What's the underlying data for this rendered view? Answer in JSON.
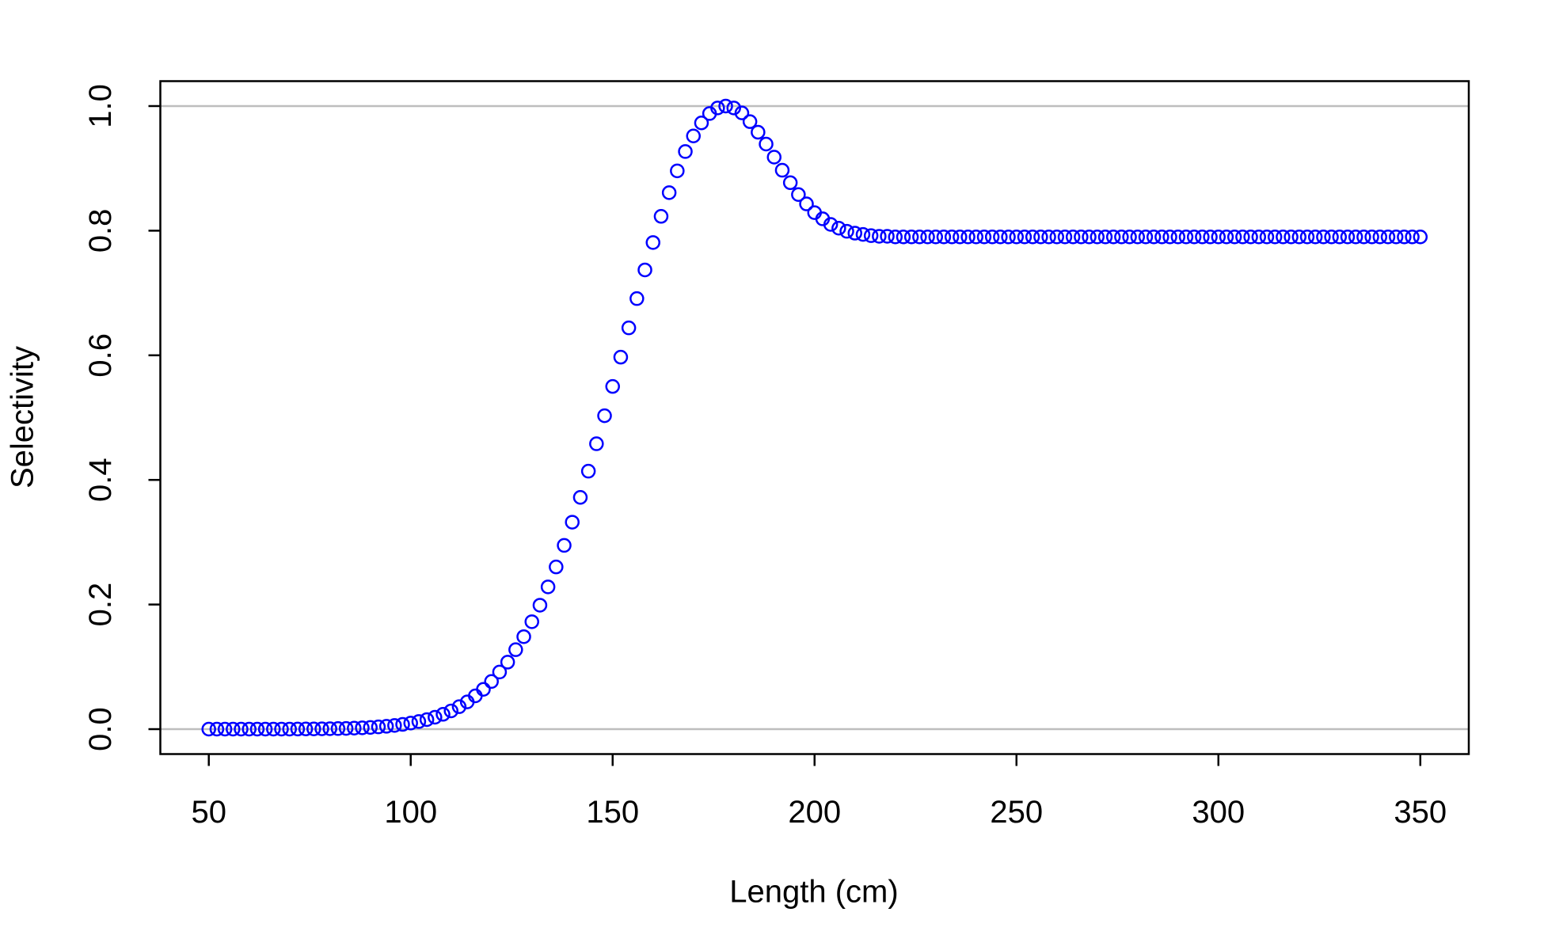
{
  "chart_data": {
    "type": "scatter",
    "xlabel": "Length (cm)",
    "ylabel": "Selectivity",
    "color": "#0000ff",
    "hlines": [
      0,
      1
    ],
    "hline_color": "#bebebe",
    "xlim": [
      38,
      362
    ],
    "ylim": [
      -0.04,
      1.04
    ],
    "xticks": [
      50,
      100,
      150,
      200,
      250,
      300,
      350
    ],
    "yticks": [
      {
        "value": 0,
        "label": "0.0"
      },
      {
        "value": 0.2,
        "label": "0.2"
      },
      {
        "value": 0.4,
        "label": "0.4"
      },
      {
        "value": 0.6,
        "label": "0.6"
      },
      {
        "value": 0.8,
        "label": "0.8"
      },
      {
        "value": 1,
        "label": "1.0"
      }
    ],
    "x": [
      50,
      52,
      54,
      56,
      58,
      60,
      62,
      64,
      66,
      68,
      70,
      72,
      74,
      76,
      78,
      80,
      82,
      84,
      86,
      88,
      90,
      92,
      94,
      96,
      98,
      100,
      102,
      104,
      106,
      108,
      110,
      112,
      114,
      116,
      118,
      120,
      122,
      124,
      126,
      128,
      130,
      132,
      134,
      136,
      138,
      140,
      142,
      144,
      146,
      148,
      150,
      152,
      154,
      156,
      158,
      160,
      162,
      164,
      166,
      168,
      170,
      172,
      174,
      176,
      178,
      180,
      182,
      184,
      186,
      188,
      190,
      192,
      194,
      196,
      198,
      200,
      202,
      204,
      206,
      208,
      210,
      212,
      214,
      216,
      218,
      220,
      222,
      224,
      226,
      228,
      230,
      232,
      234,
      236,
      238,
      240,
      242,
      244,
      246,
      248,
      250,
      252,
      254,
      256,
      258,
      260,
      262,
      264,
      266,
      268,
      270,
      272,
      274,
      276,
      278,
      280,
      282,
      284,
      286,
      288,
      290,
      292,
      294,
      296,
      298,
      300,
      302,
      304,
      306,
      308,
      310,
      312,
      314,
      316,
      318,
      320,
      322,
      324,
      326,
      328,
      330,
      332,
      334,
      336,
      338,
      340,
      342,
      344,
      346,
      348,
      350
    ],
    "values": [
      0,
      0,
      0,
      0,
      0,
      0,
      0,
      0,
      0.0001,
      0.0001,
      0.0001,
      0.0002,
      0.0003,
      0.0004,
      0.0005,
      0.0007,
      0.0009,
      0.0012,
      0.0016,
      0.0021,
      0.0027,
      0.0036,
      0.0046,
      0.0059,
      0.0076,
      0.0097,
      0.0122,
      0.0153,
      0.0191,
      0.0238,
      0.0293,
      0.036,
      0.0437,
      0.0534,
      0.0639,
      0.0765,
      0.0916,
      0.1075,
      0.1275,
      0.1484,
      0.1724,
      0.1989,
      0.2283,
      0.2603,
      0.2949,
      0.3322,
      0.372,
      0.414,
      0.458,
      0.503,
      0.55,
      0.597,
      0.644,
      0.691,
      0.737,
      0.781,
      0.823,
      0.861,
      0.896,
      0.927,
      0.952,
      0.973,
      0.988,
      0.997,
      1,
      0.997,
      0.989,
      0.975,
      0.958,
      0.939,
      0.918,
      0.897,
      0.877,
      0.858,
      0.843,
      0.829,
      0.819,
      0.81,
      0.804,
      0.799,
      0.796,
      0.794,
      0.792,
      0.791,
      0.791,
      0.79,
      0.79,
      0.79,
      0.79,
      0.79,
      0.79,
      0.79,
      0.79,
      0.79,
      0.79,
      0.79,
      0.79,
      0.79,
      0.79,
      0.79,
      0.79,
      0.79,
      0.79,
      0.79,
      0.79,
      0.79,
      0.79,
      0.79,
      0.79,
      0.79,
      0.79,
      0.79,
      0.79,
      0.79,
      0.79,
      0.79,
      0.79,
      0.79,
      0.79,
      0.79,
      0.79,
      0.79,
      0.79,
      0.79,
      0.79,
      0.79,
      0.79,
      0.79,
      0.79,
      0.79,
      0.79,
      0.79,
      0.79,
      0.79,
      0.79,
      0.79,
      0.79,
      0.79,
      0.79,
      0.79,
      0.79,
      0.79,
      0.79,
      0.79,
      0.79,
      0.79,
      0.79,
      0.79,
      0.79,
      0.79,
      0.79
    ]
  }
}
